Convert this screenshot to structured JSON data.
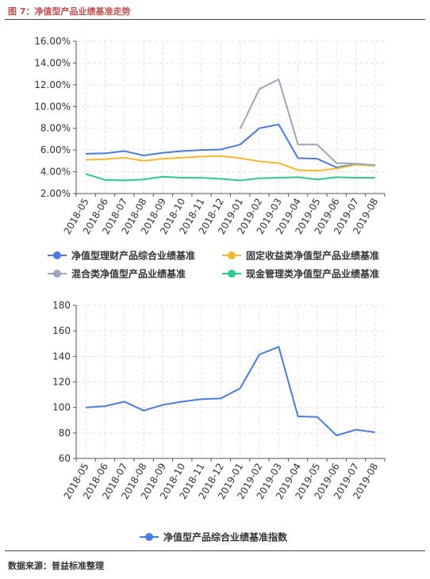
{
  "figure_title": "图 7：净值型产品业绩基准走势",
  "source_note": "数据来源：普益标准整理",
  "chart_data": [
    {
      "type": "line",
      "categories": [
        "2018-05",
        "2018-06",
        "2018-07",
        "2018-08",
        "2018-09",
        "2018-10",
        "2018-11",
        "2018-12",
        "2019-01",
        "2019-02",
        "2019-03",
        "2019-04",
        "2019-05",
        "2019-06",
        "2019-07",
        "2019-08"
      ],
      "y_ticks": [
        "2.00%",
        "4.00%",
        "6.00%",
        "8.00%",
        "10.00%",
        "12.00%",
        "14.00%",
        "16.00%"
      ],
      "ylim": [
        2,
        16
      ],
      "grid": true,
      "legend_position": "bottom",
      "series": [
        {
          "name": "净值型理财产品综合业绩基准",
          "color": "#4a7bdf",
          "values": [
            5.65,
            5.7,
            5.9,
            5.5,
            5.75,
            5.9,
            6.0,
            6.05,
            6.5,
            8.0,
            8.35,
            5.25,
            5.2,
            4.4,
            4.7,
            4.55
          ]
        },
        {
          "name": "固定收益类净值型产品业绩基准",
          "color": "#f5b82e",
          "values": [
            5.1,
            5.15,
            5.3,
            5.0,
            5.2,
            5.3,
            5.4,
            5.45,
            5.25,
            4.95,
            4.8,
            4.15,
            4.1,
            4.3,
            4.65,
            4.55
          ]
        },
        {
          "name": "混合类净值型产品业绩基准",
          "color": "#9ba6bd",
          "values": [
            null,
            null,
            null,
            null,
            null,
            null,
            null,
            null,
            7.95,
            11.6,
            12.5,
            6.5,
            6.5,
            4.8,
            4.75,
            4.6
          ]
        },
        {
          "name": "现金管理类净值型产品业绩基准",
          "color": "#2ec88c",
          "values": [
            3.8,
            3.25,
            3.2,
            3.3,
            3.55,
            3.45,
            3.45,
            3.35,
            3.2,
            3.4,
            3.45,
            3.5,
            3.3,
            3.5,
            3.45,
            3.45
          ]
        }
      ]
    },
    {
      "type": "line",
      "categories": [
        "2018-05",
        "2018-06",
        "2018-07",
        "2018-08",
        "2018-09",
        "2018-10",
        "2018-11",
        "2018-12",
        "2019-01",
        "2019-02",
        "2019-03",
        "2019-04",
        "2019-05",
        "2019-06",
        "2019-07",
        "2019-08"
      ],
      "y_ticks": [
        "60",
        "80",
        "100",
        "120",
        "140",
        "160",
        "180"
      ],
      "ylim": [
        60,
        180
      ],
      "grid": true,
      "legend_position": "bottom",
      "series": [
        {
          "name": "净值型产品综合业绩基准指数",
          "color": "#4a7bdf",
          "values": [
            100,
            101,
            104.5,
            97.5,
            102,
            104.5,
            106.5,
            107,
            115,
            141.5,
            147.5,
            93,
            92.5,
            78,
            82.5,
            80.5
          ]
        }
      ]
    }
  ]
}
